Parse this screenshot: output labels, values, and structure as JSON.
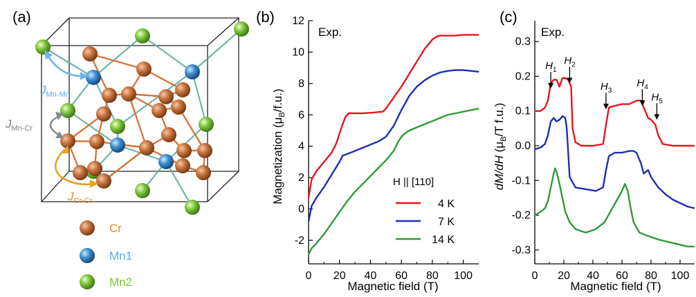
{
  "panel_a": {
    "label": "(a)",
    "legend": [
      {
        "name": "Cr",
        "color": "#c8733c",
        "text_color": "#e08a2e"
      },
      {
        "name": "Mn1",
        "color": "#3d8fd1",
        "text_color": "#5aa8e6"
      },
      {
        "name": "Mn2",
        "color": "#7cc63a",
        "text_color": "#7cc63a"
      }
    ],
    "j_labels": [
      {
        "main": "J",
        "sub": "Mn-Mn",
        "color": "#5aa8e6"
      },
      {
        "main": "J",
        "sub": "Mn-Cr",
        "color": "#808080"
      },
      {
        "main": "J",
        "sub": "Cr-Cr",
        "color": "#e08a2e"
      }
    ]
  },
  "chart_data": [
    {
      "panel_label": "(b)",
      "type": "line",
      "annotation": "Exp.",
      "xlabel": "Magnetic field (T)",
      "ylabel": "Magnetization (μB/f.u.)",
      "xlim": [
        0,
        110
      ],
      "ylim": [
        -3.5,
        12
      ],
      "xticks": [
        0,
        20,
        40,
        60,
        80,
        100
      ],
      "yticks": [
        -2,
        0,
        2,
        4,
        6,
        8,
        10,
        12
      ],
      "legend_title": "H || [110]",
      "legend_position": "lower-right",
      "series": [
        {
          "name": "4 K",
          "color": "#e8141c",
          "x": [
            0,
            2,
            5,
            10,
            15,
            18,
            20,
            22,
            24,
            26,
            28,
            35,
            42,
            48,
            50,
            55,
            60,
            65,
            70,
            75,
            80,
            83,
            85,
            90,
            95,
            100,
            105,
            110
          ],
          "y": [
            0.7,
            1.9,
            2.4,
            3.0,
            3.6,
            4.2,
            4.8,
            5.4,
            5.9,
            6.1,
            6.1,
            6.1,
            6.15,
            6.2,
            6.4,
            7.1,
            7.8,
            8.6,
            9.4,
            10.2,
            10.8,
            11.0,
            11.05,
            11.05,
            11.05,
            11.1,
            11.1,
            11.1
          ]
        },
        {
          "name": "7 K",
          "color": "#1a2fb5",
          "x": [
            0,
            2,
            5,
            10,
            15,
            20,
            22,
            25,
            30,
            35,
            40,
            45,
            50,
            55,
            60,
            65,
            70,
            75,
            80,
            85,
            90,
            95,
            100,
            105,
            110
          ],
          "y": [
            -0.8,
            0.2,
            0.7,
            1.4,
            2.2,
            3.0,
            3.4,
            3.5,
            3.7,
            3.9,
            4.1,
            4.3,
            4.6,
            5.3,
            6.3,
            7.2,
            7.8,
            8.2,
            8.5,
            8.7,
            8.8,
            8.85,
            8.85,
            8.8,
            8.75
          ]
        },
        {
          "name": "14 K",
          "color": "#2b9b35",
          "x": [
            0,
            2,
            5,
            10,
            15,
            20,
            25,
            30,
            35,
            40,
            45,
            50,
            55,
            58,
            60,
            62,
            65,
            70,
            75,
            80,
            85,
            90,
            95,
            100,
            105,
            110
          ],
          "y": [
            -2.9,
            -2.5,
            -2.2,
            -1.6,
            -0.9,
            -0.2,
            0.5,
            1.1,
            1.6,
            2.1,
            2.6,
            3.1,
            3.7,
            4.3,
            4.6,
            4.8,
            5.0,
            5.2,
            5.4,
            5.6,
            5.8,
            6.0,
            6.1,
            6.2,
            6.3,
            6.4
          ]
        }
      ]
    },
    {
      "panel_label": "(c)",
      "type": "line",
      "annotation": "Exp.",
      "xlabel": "Magnetic field (T)",
      "ylabel": "dM/dH (μB/T f.u.)",
      "xlim": [
        0,
        110
      ],
      "ylim": [
        -0.34,
        0.36
      ],
      "xticks": [
        0,
        20,
        40,
        60,
        80,
        100
      ],
      "xtick_labels": [
        "0",
        "20",
        "40",
        "60",
        "80",
        "100"
      ],
      "yticks": [
        -0.3,
        -0.2,
        -0.1,
        0.0,
        0.1,
        0.2,
        0.3
      ],
      "ytick_labels": [
        "-0.3",
        "-0.2",
        "-0.1",
        "0.0",
        "0.1",
        "0.2",
        "0.3"
      ],
      "markers": [
        {
          "label": "H",
          "sub": "1",
          "x": 11,
          "y": 0.165
        },
        {
          "label": "H",
          "sub": "2",
          "x": 24,
          "y": 0.18
        },
        {
          "label": "H",
          "sub": "3",
          "x": 49,
          "y": 0.105
        },
        {
          "label": "H",
          "sub": "4",
          "x": 74,
          "y": 0.115
        },
        {
          "label": "H",
          "sub": "5",
          "x": 84,
          "y": 0.075
        }
      ],
      "series": [
        {
          "name": "4 K",
          "color": "#e8141c",
          "x": [
            0,
            4,
            7,
            9,
            11,
            13,
            15,
            17,
            19,
            21,
            23,
            25,
            26,
            28,
            32,
            40,
            47,
            49,
            51,
            55,
            60,
            65,
            70,
            73,
            75,
            78,
            80,
            83,
            85,
            88,
            95,
            100,
            105,
            110
          ],
          "y": [
            0.1,
            0.1,
            0.11,
            0.13,
            0.18,
            0.19,
            0.19,
            0.17,
            0.195,
            0.195,
            0.19,
            0.17,
            0.05,
            0.01,
            0.0,
            0.0,
            0.005,
            0.06,
            0.11,
            0.115,
            0.12,
            0.12,
            0.13,
            0.13,
            0.11,
            0.08,
            0.075,
            0.06,
            0.03,
            0.005,
            0.0,
            0.0,
            0.0,
            0.0
          ]
        },
        {
          "name": "7 K",
          "color": "#1a2fb5",
          "x": [
            0,
            4,
            7,
            9,
            11,
            13,
            15,
            17,
            19,
            21,
            22,
            24,
            28,
            35,
            42,
            47,
            49,
            51,
            55,
            60,
            65,
            68,
            70,
            73,
            75,
            78,
            80,
            85,
            90,
            95,
            100,
            105,
            110
          ],
          "y": [
            -0.01,
            -0.005,
            0.005,
            0.03,
            0.07,
            0.08,
            0.07,
            0.075,
            0.085,
            0.08,
            0.05,
            -0.09,
            -0.12,
            -0.125,
            -0.13,
            -0.12,
            -0.07,
            -0.03,
            -0.02,
            -0.02,
            -0.015,
            -0.015,
            -0.02,
            -0.05,
            -0.08,
            -0.07,
            -0.09,
            -0.12,
            -0.14,
            -0.155,
            -0.165,
            -0.175,
            -0.18
          ]
        },
        {
          "name": "14 K",
          "color": "#2b9b35",
          "x": [
            0,
            4,
            7,
            9,
            11,
            13,
            14,
            15,
            17,
            19,
            21,
            24,
            28,
            35,
            42,
            48,
            52,
            56,
            60,
            62,
            64,
            66,
            68,
            72,
            78,
            85,
            90,
            95,
            100,
            105,
            110
          ],
          "y": [
            -0.2,
            -0.19,
            -0.18,
            -0.16,
            -0.12,
            -0.08,
            -0.065,
            -0.075,
            -0.11,
            -0.15,
            -0.19,
            -0.22,
            -0.24,
            -0.25,
            -0.24,
            -0.22,
            -0.19,
            -0.16,
            -0.13,
            -0.11,
            -0.13,
            -0.18,
            -0.22,
            -0.25,
            -0.26,
            -0.27,
            -0.275,
            -0.28,
            -0.285,
            -0.29,
            -0.29
          ]
        }
      ]
    }
  ]
}
